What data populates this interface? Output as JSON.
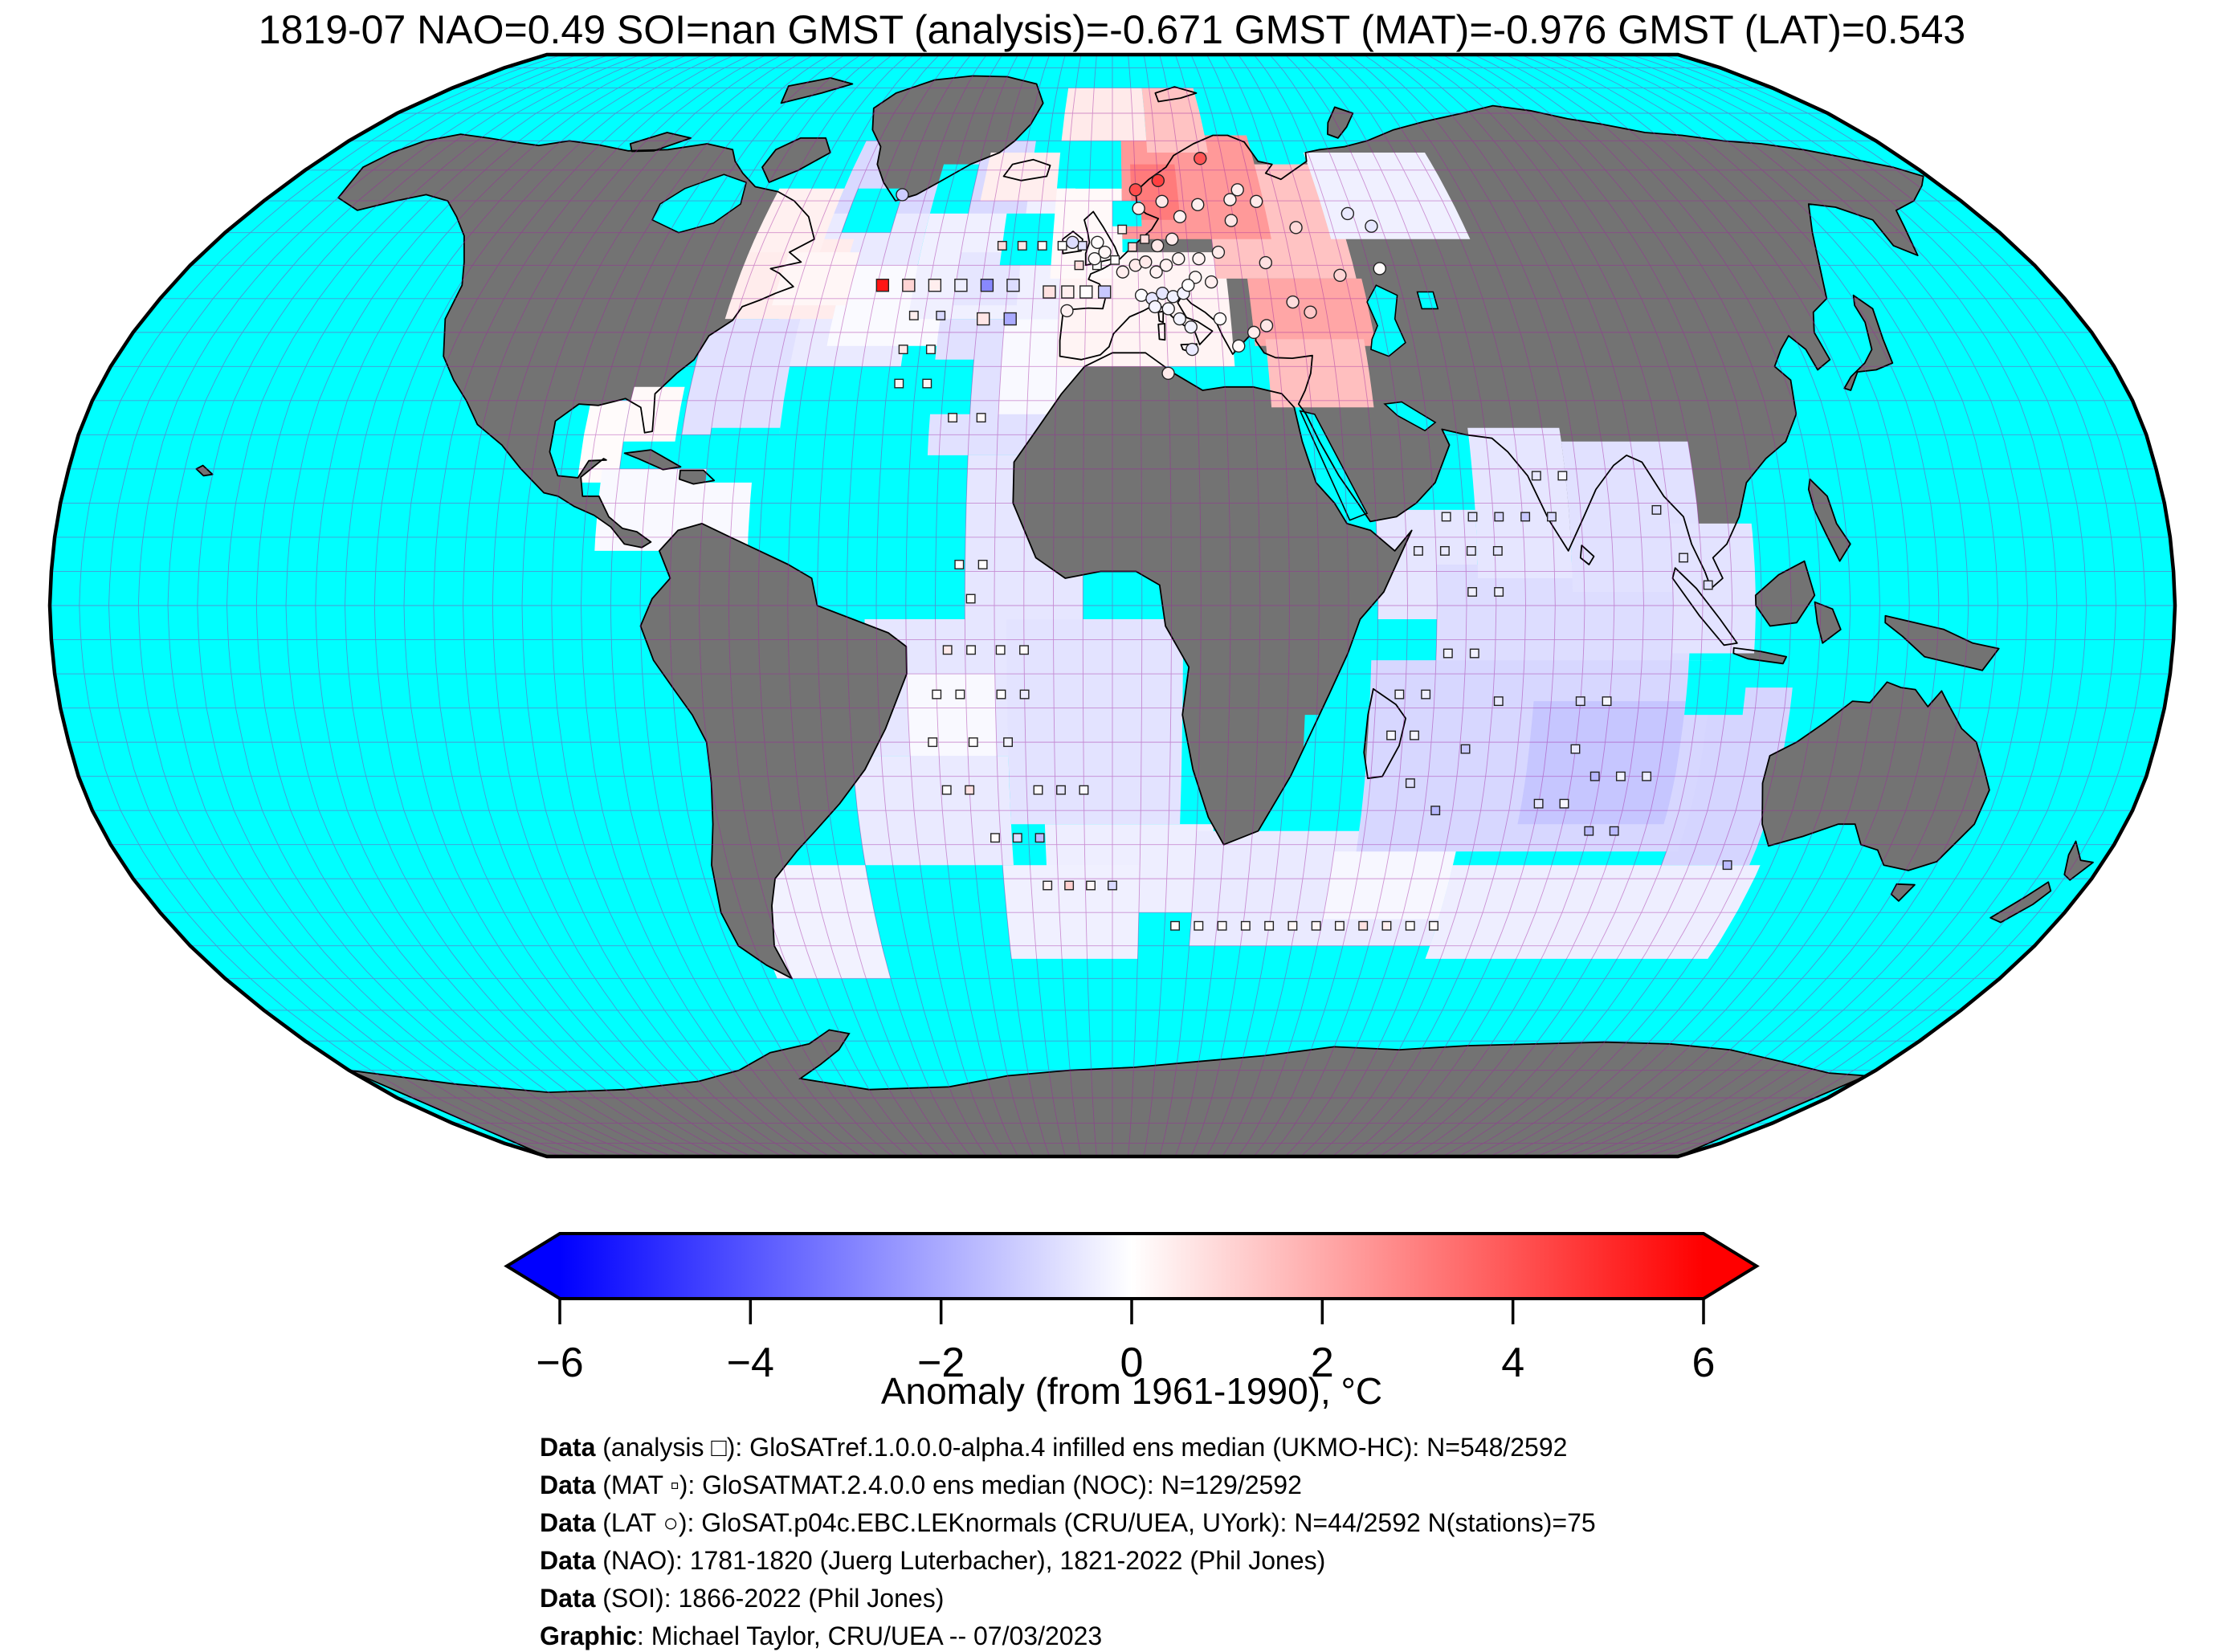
{
  "title": "1819-07 NAO=0.49 SOI=nan GMST (analysis)=-0.671 GMST (MAT)=-0.976 GMST (LAT)=0.543",
  "header_stats": {
    "date": "1819-07",
    "NAO": "0.49",
    "SOI": "nan",
    "GMST_analysis": "-0.671",
    "GMST_MAT": "-0.976",
    "GMST_LAT": "0.543"
  },
  "colors": {
    "ocean_no_data": "#00ffff",
    "land_no_data": "#737373",
    "coastline": "#000000",
    "graticule": "#a020a0",
    "map_border": "#000000",
    "scale_min_color": "#0000ff",
    "scale_mid_color": "#ffffff",
    "scale_max_color": "#ff0000",
    "background": "#ffffff",
    "text": "#000000"
  },
  "colorbar": {
    "label": "Anomaly (from 1961-1990), °C",
    "tick_values": [
      -6,
      -4,
      -2,
      0,
      2,
      4,
      6
    ],
    "tick_labels": [
      "−6",
      "−4",
      "−2",
      "0",
      "2",
      "4",
      "6"
    ],
    "min": -6,
    "max": 6
  },
  "caption": {
    "lines": [
      {
        "bold": "Data",
        "rest": " (analysis □): GloSATref.1.0.0.0-alpha.4 infilled ens median (UKMO-HC): N=548/2592"
      },
      {
        "bold": "Data",
        "rest": " (MAT ▫): GloSATMAT.2.4.0.0 ens median (NOC): N=129/2592"
      },
      {
        "bold": "Data",
        "rest": " (LAT ○): GloSAT.p04c.EBC.LEKnormals (CRU/UEA, UYork): N=44/2592 N(stations)=75"
      },
      {
        "bold": "Data",
        "rest": " (NAO): 1781-1820 (Juerg Luterbacher), 1821-2022 (Phil Jones)"
      },
      {
        "bold": "Data",
        "rest": " (SOI): 1866-2022 (Phil Jones)"
      },
      {
        "bold": "Graphic",
        "rest": ": Michael Taylor, CRU/UEA -- 07/03/2023"
      }
    ]
  },
  "chart_data": {
    "type": "heatmap",
    "subtype": "global-gridded-anomaly-map",
    "projection": "robinson",
    "grid_resolution_deg": 5,
    "title": "1819-07 NAO=0.49 SOI=nan GMST (analysis)=-0.671 GMST (MAT)=-0.976 GMST (LAT)=0.543",
    "value_label": "Anomaly (from 1961-1990), °C",
    "value_range": [
      -6,
      6
    ],
    "colormap": "bwr (blue-white-red)",
    "no_data_ocean": "cyan",
    "no_data_land": "gray",
    "legend_position": "bottom horizontal colorbar with arrow ends",
    "anomaly_patches_under": [
      [
        -62,
        -38,
        35,
        60,
        -0.5
      ],
      [
        -52,
        -30,
        38,
        50,
        -0.12
      ],
      [
        -38,
        -8,
        42,
        62,
        -0.35
      ],
      [
        -30,
        -18,
        44,
        52,
        -0.6
      ],
      [
        -58,
        -18,
        58,
        70,
        -0.9
      ],
      [
        -75,
        -58,
        25,
        42,
        -0.7
      ],
      [
        -92,
        -85,
        18,
        30,
        0.1
      ],
      [
        -88,
        -62,
        8,
        20,
        -0.15
      ],
      [
        -32,
        -8,
        22,
        42,
        -0.7
      ],
      [
        -20,
        -5,
        28,
        42,
        -0.15
      ],
      [
        -25,
        -5,
        -2,
        22,
        -0.6
      ],
      [
        -42,
        -12,
        -22,
        -2,
        -0.6
      ],
      [
        -35,
        -20,
        -30,
        -10,
        -0.15
      ],
      [
        -45,
        -18,
        -38,
        -22,
        -0.5
      ],
      [
        -18,
        12,
        -32,
        -2,
        -0.65
      ],
      [
        -12,
        18,
        -45,
        -32,
        -0.4
      ],
      [
        -68,
        -45,
        -55,
        -38,
        -0.3
      ],
      [
        -20,
        5,
        -52,
        -38,
        -0.35
      ],
      [
        15,
        62,
        -50,
        -33,
        -0.5
      ],
      [
        40,
        62,
        -46,
        -36,
        -0.18
      ],
      [
        62,
        118,
        -52,
        -38,
        -0.4
      ],
      [
        45,
        62,
        -2,
        14,
        -0.6
      ],
      [
        55,
        98,
        -12,
        6,
        -0.8
      ],
      [
        100,
        116,
        -38,
        -12,
        -1.0
      ],
      [
        -85,
        -75,
        40,
        52,
        0.2
      ]
    ],
    "anomaly_patches_over": [
      [
        -10,
        22,
        35,
        52,
        0.25
      ],
      [
        -12,
        2,
        48,
        62,
        0.15
      ],
      [
        20,
        47,
        48,
        66,
        1.4
      ],
      [
        2,
        32,
        54,
        71,
        2.4
      ],
      [
        4,
        14,
        57,
        66,
        3.1
      ],
      [
        26,
        48,
        38,
        48,
        2.1
      ],
      [
        28,
        46,
        29,
        39,
        1.5
      ],
      [
        8,
        22,
        68,
        80,
        1.4
      ],
      [
        -12,
        8,
        70,
        80,
        0.5
      ],
      [
        -28,
        -12,
        60,
        68,
        0.4
      ],
      [
        -72,
        -52,
        42,
        54,
        0.45
      ],
      [
        -72,
        -58,
        52,
        62,
        0.35
      ],
      [
        -85,
        -76,
        24,
        32,
        0.15
      ],
      [
        44,
        72,
        54,
        68,
        -0.35
      ],
      [
        62,
        78,
        4,
        26,
        -0.6
      ],
      [
        78,
        100,
        2,
        24,
        -0.7
      ],
      [
        95,
        109,
        -7,
        12,
        -0.65
      ],
      [
        44,
        102,
        -36,
        -8,
        -0.95
      ],
      [
        72,
        98,
        -32,
        -14,
        -1.35
      ],
      [
        -64,
        -50,
        44,
        52,
        0.2
      ]
    ],
    "no_data_gaps": [
      [
        -55,
        -45,
        55,
        62
      ],
      [
        -38,
        -30,
        58,
        66
      ],
      [
        -8,
        2,
        62,
        70
      ],
      [
        -22,
        -12,
        50,
        58
      ],
      [
        -35,
        -25,
        28,
        36
      ],
      [
        33,
        43,
        -26,
        -16
      ],
      [
        98,
        108,
        -16,
        -8
      ],
      [
        -70,
        -58,
        18,
        26
      ],
      [
        0,
        6,
        56,
        60
      ],
      [
        -58,
        -48,
        8,
        18
      ]
    ],
    "markers": {
      "analysis_cells": {
        "glyph": "open-square-large",
        "points": [
          [
            -44,
            47,
            5.5
          ],
          [
            -39,
            47,
            1.0
          ],
          [
            -34,
            47,
            0.4
          ],
          [
            -29,
            47,
            -0.4
          ],
          [
            -24,
            47,
            -2.8
          ],
          [
            -19,
            47,
            -0.8
          ],
          [
            -24,
            42,
            0.6
          ],
          [
            -19,
            42,
            -2.0
          ],
          [
            -12,
            46,
            0.7
          ],
          [
            -8.5,
            46,
            0.4
          ],
          [
            -5,
            46,
            0.05
          ],
          [
            -1.5,
            46,
            -1.3
          ]
        ]
      },
      "mat_cells": {
        "glyph": "open-square-small",
        "points": [
          [
            -22,
            53,
            0.8
          ],
          [
            -18,
            53,
            0.6
          ],
          [
            -14,
            53,
            0.15
          ],
          [
            -10,
            53,
            0.05
          ],
          [
            -6,
            53,
            -0.7
          ],
          [
            -37,
            42.5,
            0.4
          ],
          [
            -32,
            42.5,
            -0.9
          ],
          [
            -38,
            37.5,
            0.5
          ],
          [
            -33,
            37.5,
            0.1
          ],
          [
            -38,
            32.5,
            0.25
          ],
          [
            -33,
            32.5,
            0.2
          ],
          [
            -28,
            27.5,
            0.2
          ],
          [
            -23,
            27.5,
            0.15
          ],
          [
            -6.5,
            50,
            0.8
          ],
          [
            -3,
            50,
            0.05
          ],
          [
            0.5,
            50.8,
            0.05
          ],
          [
            4,
            52.8,
            0.9
          ],
          [
            6.5,
            54,
            0.8
          ],
          [
            2,
            55.5,
            0.4
          ],
          [
            -26,
            6,
            0.05
          ],
          [
            -22,
            6,
            0.05
          ],
          [
            -24,
            1,
            0.1
          ],
          [
            -28,
            -6.5,
            0.5
          ],
          [
            -24,
            -6.5,
            0.05
          ],
          [
            -19,
            -6.5,
            0.05
          ],
          [
            -15,
            -6.5,
            0.1
          ],
          [
            -30,
            -13,
            0.05
          ],
          [
            -26,
            -13,
            0.05
          ],
          [
            -19,
            -13,
            0.05
          ],
          [
            -15,
            -13,
            -0.45
          ],
          [
            -31,
            -20,
            0.08
          ],
          [
            -24,
            -20,
            0.05
          ],
          [
            -18,
            -20,
            -0.25
          ],
          [
            -29,
            -27,
            0.05
          ],
          [
            -25,
            -27,
            0.7
          ],
          [
            -13,
            -27,
            0.1
          ],
          [
            -9,
            -27,
            -0.6
          ],
          [
            -5,
            -27,
            -0.15
          ],
          [
            -21,
            -34,
            0.1
          ],
          [
            -17,
            -34,
            -0.8
          ],
          [
            -13,
            -34,
            -1.6
          ],
          [
            -12,
            -41,
            0.2
          ],
          [
            -8,
            -41,
            1.1
          ],
          [
            -4,
            -41,
            0.15
          ],
          [
            0,
            -41,
            -0.9
          ],
          [
            12,
            -47,
            0.1
          ],
          [
            16.5,
            -47,
            0.1
          ],
          [
            21,
            -47,
            0.12
          ],
          [
            25.5,
            -47,
            0.12
          ],
          [
            30,
            -47,
            0.15
          ],
          [
            34.5,
            -47,
            0.18
          ],
          [
            39,
            -47,
            0.2
          ],
          [
            43.5,
            -47,
            0.15
          ],
          [
            48,
            -47,
            0.7
          ],
          [
            52.5,
            -47,
            0.4
          ],
          [
            57,
            -47,
            0.1
          ],
          [
            61.5,
            -47,
            0.1
          ],
          [
            57,
            13,
            -0.4
          ],
          [
            61.5,
            13,
            -0.7
          ],
          [
            66,
            13,
            -1.0
          ],
          [
            70.5,
            13,
            -1.3
          ],
          [
            75,
            13,
            -0.9
          ],
          [
            52,
            8,
            -0.5
          ],
          [
            56.5,
            8,
            -0.5
          ],
          [
            61,
            8,
            -0.55
          ],
          [
            65.5,
            8,
            -0.6
          ],
          [
            61,
            2,
            -0.35
          ],
          [
            65.5,
            2,
            -0.35
          ],
          [
            57,
            -7,
            -0.25
          ],
          [
            61.5,
            -7,
            -0.3
          ],
          [
            66,
            -14,
            -0.5
          ],
          [
            80,
            -14,
            -0.7
          ],
          [
            84.5,
            -14,
            -0.2
          ],
          [
            61,
            -21,
            -1.3
          ],
          [
            80,
            -21,
            -0.5
          ],
          [
            84,
            -25,
            -1.7
          ],
          [
            88.5,
            -25,
            -0.3
          ],
          [
            93,
            -25,
            -0.4
          ],
          [
            75,
            -29,
            -0.6
          ],
          [
            79.5,
            -29,
            -0.2
          ],
          [
            85,
            -33,
            -1.6
          ],
          [
            89.5,
            -33,
            -1.6
          ],
          [
            52,
            -26,
            -0.7
          ],
          [
            57,
            -30,
            -1.7
          ],
          [
            112,
            -38,
            -1.6
          ],
          [
            73,
            19,
            -0.55
          ],
          [
            77.5,
            19,
            -0.2
          ],
          [
            49,
            -13,
            -0.3
          ],
          [
            53.5,
            -13,
            -0.35
          ],
          [
            48,
            -19,
            -0.2
          ],
          [
            52,
            -19,
            -0.25
          ],
          [
            93,
            14,
            -0.8
          ],
          [
            97,
            7,
            -0.6
          ],
          [
            101,
            3,
            -0.7
          ]
        ]
      },
      "lat_cells": {
        "glyph": "open-circle",
        "points": [
          [
            -8,
            53.5,
            -0.8
          ],
          [
            -3,
            53.5,
            0.1
          ],
          [
            -1.5,
            52,
            0.2
          ],
          [
            -3.5,
            51,
            0.15
          ],
          [
            2,
            49,
            0.4
          ],
          [
            4.5,
            50,
            0.5
          ],
          [
            6.5,
            50.5,
            0.5
          ],
          [
            8.5,
            49,
            0.3
          ],
          [
            10.5,
            50,
            0.3
          ],
          [
            13,
            51,
            0.25
          ],
          [
            9,
            53,
            0.55
          ],
          [
            12,
            54,
            0.45
          ],
          [
            5.5,
            45.5,
            -0.1
          ],
          [
            7.5,
            45,
            -0.6
          ],
          [
            9.5,
            45.8,
            -0.6
          ],
          [
            11.5,
            45.3,
            -0.35
          ],
          [
            13.5,
            45.8,
            -0.3
          ],
          [
            8,
            43.8,
            -0.25
          ],
          [
            10.5,
            43.5,
            -0.2
          ],
          [
            12.5,
            42,
            -0.25
          ],
          [
            14.5,
            40.8,
            -0.3
          ],
          [
            14.5,
            37.5,
            -0.5
          ],
          [
            10,
            34,
            0.5
          ],
          [
            16,
            48.2,
            0.2
          ],
          [
            14.5,
            47,
            0.0
          ],
          [
            19,
            47.5,
            0.35
          ],
          [
            21,
            52,
            0.5
          ],
          [
            17,
            51,
            0.3
          ],
          [
            20,
            42,
            0.1
          ],
          [
            23,
            38,
            0.15
          ],
          [
            26,
            40,
            0.45
          ],
          [
            28.5,
            41,
            0.55
          ],
          [
            5.5,
            58.8,
            0.4
          ],
          [
            5,
            61.8,
            4.2
          ],
          [
            10,
            63.3,
            4.5
          ],
          [
            20,
            67,
            4.0
          ],
          [
            10.5,
            59.9,
            0.5
          ],
          [
            14,
            57.5,
            0.3
          ],
          [
            18,
            59.4,
            0.35
          ],
          [
            25,
            60.2,
            0.35
          ],
          [
            27,
            61.8,
            0.4
          ],
          [
            30.5,
            59.9,
            0.5
          ],
          [
            24.5,
            56.9,
            0.6
          ],
          [
            37.5,
            55.8,
            0.9
          ],
          [
            30,
            50.4,
            0.7
          ],
          [
            34,
            44.5,
            0.8
          ],
          [
            37,
            43,
            1.3
          ],
          [
            44,
            48.5,
            1.0
          ],
          [
            52,
            49.5,
            0.1
          ],
          [
            49,
            58,
            -0.5
          ],
          [
            53,
            56,
            -0.6
          ],
          [
            -8.5,
            43.2,
            0.3
          ],
          [
            -45,
            61,
            -1.2
          ]
        ]
      }
    }
  }
}
